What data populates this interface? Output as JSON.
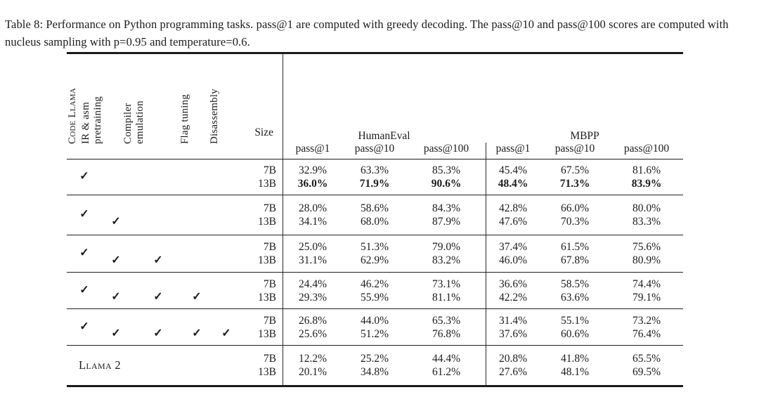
{
  "caption": "Table 8: Performance on Python programming tasks. pass@1 are computed with greedy decoding. The pass@10 and pass@100 scores are computed with nucleus sampling with p=0.95 and temperature=0.6.",
  "table": {
    "check_glyph": "✓",
    "config_columns": [
      "Code Llama",
      "IR & asm\npretraining",
      "Compiler\nemulation",
      "Flag tuning",
      "Disassembly"
    ],
    "size_header": "Size",
    "benchmark_groups": [
      {
        "label": "HumanEval",
        "metrics": [
          "pass@1",
          "pass@10",
          "pass@100"
        ]
      },
      {
        "label": "MBPP",
        "metrics": [
          "pass@1",
          "pass@10",
          "pass@100"
        ]
      }
    ],
    "metric_headers": [
      "pass@1",
      "pass@10",
      "pass@100",
      "pass@1",
      "pass@10",
      "pass@100"
    ],
    "groups": [
      {
        "checks": [
          true,
          false,
          false,
          false,
          false
        ],
        "rows": [
          {
            "size": "7B",
            "bold": false,
            "values": [
              "32.9%",
              "63.3%",
              "85.3%",
              "45.4%",
              "67.5%",
              "81.6%"
            ]
          },
          {
            "size": "13B",
            "bold": true,
            "values": [
              "36.0%",
              "71.9%",
              "90.6%",
              "48.4%",
              "71.3%",
              "83.9%"
            ]
          }
        ]
      },
      {
        "checks": [
          true,
          true,
          false,
          false,
          false
        ],
        "rows": [
          {
            "size": "7B",
            "bold": false,
            "values": [
              "28.0%",
              "58.6%",
              "84.3%",
              "42.8%",
              "66.0%",
              "80.0%"
            ]
          },
          {
            "size": "13B",
            "bold": false,
            "values": [
              "34.1%",
              "68.0%",
              "87.9%",
              "47.6%",
              "70.3%",
              "83.3%"
            ]
          }
        ]
      },
      {
        "checks": [
          true,
          true,
          true,
          false,
          false
        ],
        "rows": [
          {
            "size": "7B",
            "bold": false,
            "values": [
              "25.0%",
              "51.3%",
              "79.0%",
              "37.4%",
              "61.5%",
              "75.6%"
            ]
          },
          {
            "size": "13B",
            "bold": false,
            "values": [
              "31.1%",
              "62.9%",
              "83.2%",
              "46.0%",
              "67.8%",
              "80.9%"
            ]
          }
        ]
      },
      {
        "checks": [
          true,
          true,
          true,
          true,
          false
        ],
        "rows": [
          {
            "size": "7B",
            "bold": false,
            "values": [
              "24.4%",
              "46.2%",
              "73.1%",
              "36.6%",
              "58.5%",
              "74.4%"
            ]
          },
          {
            "size": "13B",
            "bold": false,
            "values": [
              "29.3%",
              "55.9%",
              "81.1%",
              "42.2%",
              "63.6%",
              "79.1%"
            ]
          }
        ]
      },
      {
        "checks": [
          true,
          true,
          true,
          true,
          true
        ],
        "rows": [
          {
            "size": "7B",
            "bold": false,
            "values": [
              "26.8%",
              "44.0%",
              "65.3%",
              "31.4%",
              "55.1%",
              "73.2%"
            ]
          },
          {
            "size": "13B",
            "bold": false,
            "values": [
              "25.6%",
              "51.2%",
              "76.8%",
              "37.6%",
              "60.6%",
              "76.4%"
            ]
          }
        ]
      },
      {
        "model_label": "Llama 2",
        "checks": [
          false,
          false,
          false,
          false,
          false
        ],
        "rows": [
          {
            "size": "7B",
            "bold": false,
            "values": [
              "12.2%",
              "25.2%",
              "44.4%",
              "20.8%",
              "41.8%",
              "65.5%"
            ]
          },
          {
            "size": "13B",
            "bold": false,
            "values": [
              "20.1%",
              "34.8%",
              "61.2%",
              "27.6%",
              "48.1%",
              "69.5%"
            ]
          }
        ]
      }
    ]
  }
}
